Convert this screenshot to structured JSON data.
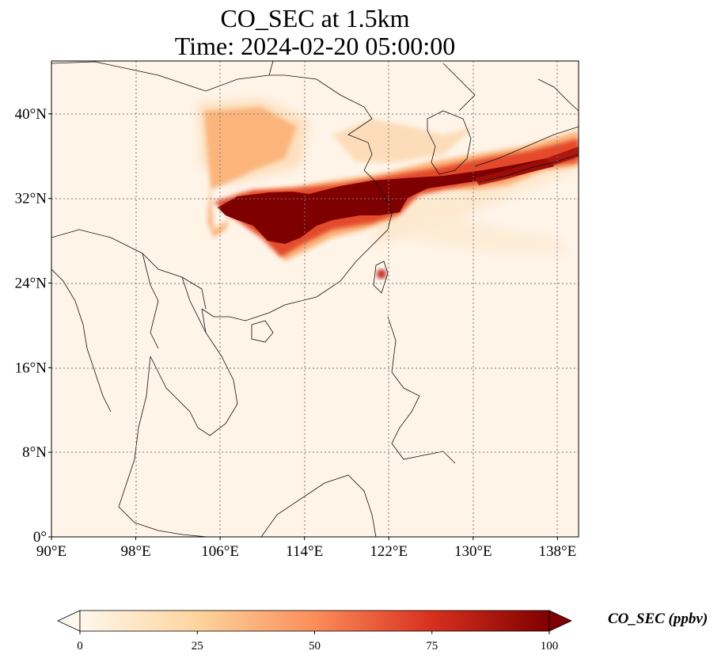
{
  "title": {
    "line1": "CO_SEC at 1.5km",
    "line2": "Time: 2024-02-20 05:00:00"
  },
  "map": {
    "lon_range": [
      90,
      140
    ],
    "lat_range": [
      0,
      45
    ],
    "grid": true,
    "x_ticks": [
      {
        "value": 90,
        "label": "90°E"
      },
      {
        "value": 98,
        "label": "98°E"
      },
      {
        "value": 106,
        "label": "106°E"
      },
      {
        "value": 114,
        "label": "114°E"
      },
      {
        "value": 122,
        "label": "122°E"
      },
      {
        "value": 130,
        "label": "130°E"
      },
      {
        "value": 138,
        "label": "138°E"
      }
    ],
    "y_ticks": [
      {
        "value": 0,
        "label": "0°"
      },
      {
        "value": 8,
        "label": "8°N"
      },
      {
        "value": 16,
        "label": "16°N"
      },
      {
        "value": 24,
        "label": "24°N"
      },
      {
        "value": 32,
        "label": "32°N"
      },
      {
        "value": 40,
        "label": "40°N"
      }
    ],
    "colors": {
      "background": "#fef4e8",
      "low": "#fdd5a8",
      "mid": "#f4a06a",
      "high": "#d54824",
      "max": "#7f0000"
    }
  },
  "colorbar": {
    "label": "CO_SEC (ppbv)",
    "ticks": [
      {
        "value": 0,
        "label": "0"
      },
      {
        "value": 25,
        "label": "25"
      },
      {
        "value": 50,
        "label": "50"
      },
      {
        "value": 75,
        "label": "75"
      },
      {
        "value": 100,
        "label": "100"
      }
    ],
    "range": [
      0,
      100
    ],
    "extend": "both",
    "colormap": "OrRd"
  }
}
